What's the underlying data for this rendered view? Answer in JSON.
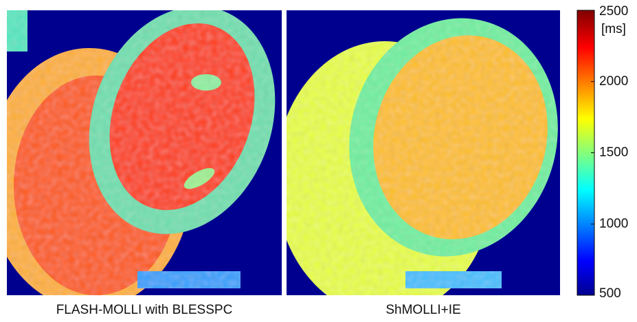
{
  "panels": [
    {
      "label": "FLASH-MOLLI with BLESSPC"
    },
    {
      "label": "ShMOLLI+IE"
    }
  ],
  "colorbar": {
    "unit": "[ms]",
    "range": [
      500,
      2500
    ],
    "ticks": [
      500,
      1000,
      1500,
      2000,
      2500
    ]
  }
}
